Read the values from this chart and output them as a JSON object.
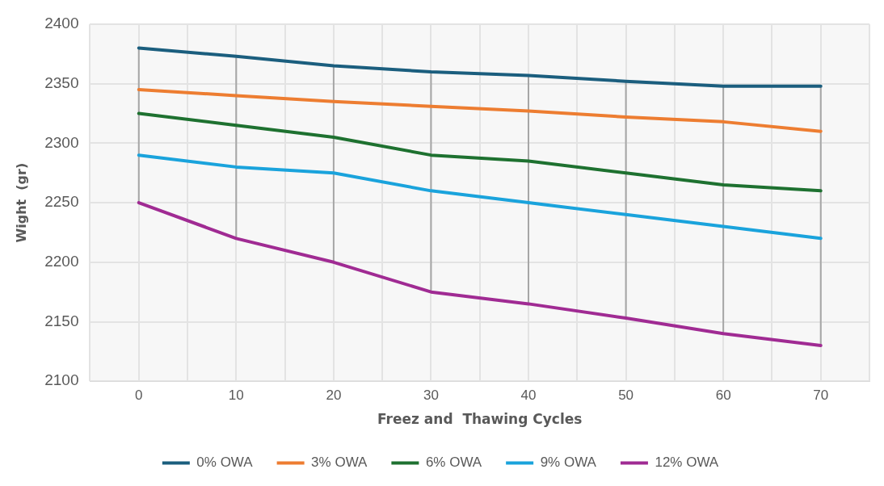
{
  "chart_data": {
    "type": "line",
    "xlabel": "Freez and  Thawing Cycles",
    "ylabel": "Wight  (gr)",
    "x": [
      0,
      10,
      20,
      30,
      40,
      50,
      60,
      70
    ],
    "xlim": [
      -5,
      75
    ],
    "xticks": [
      {
        "value": -5,
        "label": null
      },
      0,
      {
        "value": 5,
        "label": null
      },
      10,
      {
        "value": 15,
        "label": null
      },
      20,
      {
        "value": 25,
        "label": null
      },
      30,
      {
        "value": 35,
        "label": null
      },
      40,
      {
        "value": 45,
        "label": null
      },
      50,
      {
        "value": 55,
        "label": null
      },
      60,
      {
        "value": 65,
        "label": null
      },
      70,
      {
        "value": 75,
        "label": null
      }
    ],
    "ylim": [
      2100,
      2400
    ],
    "yticks": [
      2100,
      2150,
      2200,
      2250,
      2300,
      2350,
      2400
    ],
    "grid": true,
    "legend": "bottom",
    "marker": "none",
    "line_style": "solid",
    "series": [
      {
        "name": "0% OWA",
        "color": "#1b5e7e",
        "values": [
          2380,
          2373,
          2365,
          2360,
          2357,
          2352,
          2348,
          2348
        ]
      },
      {
        "name": "3% OWA",
        "color": "#ed7d31",
        "values": [
          2345,
          2340,
          2335,
          2331,
          2327,
          2322,
          2318,
          2310
        ]
      },
      {
        "name": "6% OWA",
        "color": "#1e7130",
        "values": [
          2325,
          2315,
          2305,
          2290,
          2285,
          2275,
          2265,
          2260
        ]
      },
      {
        "name": "9% OWA",
        "color": "#1aa3dc",
        "values": [
          2290,
          2280,
          2275,
          2260,
          2250,
          2240,
          2230,
          2220
        ]
      },
      {
        "name": "12% OWA",
        "color": "#a02b93",
        "values": [
          2250,
          2220,
          2200,
          2175,
          2165,
          2153,
          2140,
          2130
        ]
      },
      {
        "color": "#a6a6a6",
        "x": [
          0,
          0
        ],
        "values": [
          2380,
          2250
        ]
      },
      {
        "color": "#a6a6a6",
        "x": [
          10,
          10
        ],
        "values": [
          2373,
          2220
        ]
      },
      {
        "color": "#a6a6a6",
        "x": [
          20,
          20
        ],
        "values": [
          2365,
          2200
        ]
      },
      {
        "color": "#a6a6a6",
        "x": [
          30,
          30
        ],
        "values": [
          2360,
          2175
        ]
      },
      {
        "color": "#a6a6a6",
        "x": [
          40,
          40
        ],
        "values": [
          2357,
          2165
        ]
      },
      {
        "color": "#a6a6a6",
        "x": [
          50,
          50
        ],
        "values": [
          2352,
          2153
        ]
      },
      {
        "color": "#a6a6a6",
        "x": [
          60,
          60
        ],
        "values": [
          2348,
          2140
        ]
      },
      {
        "color": "#a6a6a6",
        "x": [
          70,
          70
        ],
        "values": [
          2348,
          2130
        ]
      }
    ]
  }
}
